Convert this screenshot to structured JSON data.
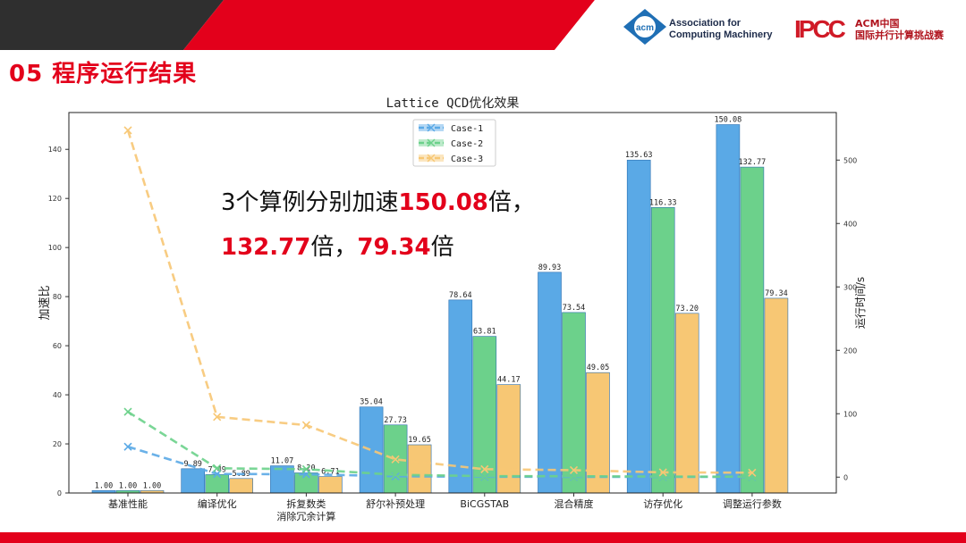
{
  "slide": {
    "section_title": "05 程序运行结果",
    "acm_badge": "acm",
    "acm_line1": "Association for",
    "acm_line2": "Computing Machinery",
    "ipcc_mark": "IPCC",
    "ipcc_line1": "ACM中国",
    "ipcc_line2": "国际并行计算挑战赛"
  },
  "overlay": {
    "line1_prefix": "3个算例分别加速",
    "line1_value": "150.08",
    "line1_suffix": "倍，",
    "line2_value1": "132.77",
    "line2_mid": "倍，",
    "line2_value2": "79.34",
    "line2_suffix": "倍"
  },
  "colors": {
    "accent_red": "#e3001b",
    "case1": "#5aa9e6",
    "case2": "#6cd18b",
    "case3": "#f7c774"
  },
  "chart_data": {
    "type": "bar",
    "title": "Lattice QCD优化效果",
    "ylabel": "加速比",
    "y2label": "运行时间/s",
    "ylim": [
      0,
      155
    ],
    "y2lim": [
      -25,
      575
    ],
    "yticks": [
      0,
      20,
      40,
      60,
      80,
      100,
      120,
      140
    ],
    "y2ticks": [
      0,
      100,
      200,
      300,
      400,
      500
    ],
    "categories": [
      "基准性能",
      "编译优化",
      "拆复数类\n消除冗余计算",
      "舒尔补预处理",
      "BiCGSTAB",
      "混合精度",
      "访存优化",
      "调整运行参数"
    ],
    "legend_position": "top-center",
    "series": [
      {
        "name": "Case-1",
        "values": [
          1.0,
          9.89,
          11.07,
          35.04,
          78.64,
          89.93,
          135.63,
          150.08
        ],
        "value_labels": [
          "1.00",
          "9.89",
          "11.07",
          "35.04",
          "78.64",
          "89.93",
          "135.63",
          "150.08"
        ],
        "runtime": [
          48,
          5,
          4.5,
          1.4,
          0.6,
          0.5,
          0.35,
          0.32
        ]
      },
      {
        "name": "Case-2",
        "values": [
          1.0,
          7.49,
          8.2,
          27.73,
          63.81,
          73.54,
          116.33,
          132.77
        ],
        "value_labels": [
          "1.00",
          "7.49",
          "8.20",
          "27.73",
          "63.81",
          "73.54",
          "116.33",
          "132.77"
        ],
        "runtime": [
          103,
          14,
          12.5,
          3.7,
          1.6,
          1.4,
          0.9,
          0.8
        ]
      },
      {
        "name": "Case-3",
        "values": [
          1.0,
          5.89,
          6.71,
          19.65,
          44.17,
          49.05,
          73.2,
          79.34
        ],
        "value_labels": [
          "1.00",
          "5.89",
          "6.71",
          "19.65",
          "44.17",
          "49.05",
          "73.20",
          "79.34"
        ],
        "runtime": [
          547,
          95,
          82,
          28,
          12.5,
          11,
          7.5,
          7
        ]
      }
    ]
  }
}
